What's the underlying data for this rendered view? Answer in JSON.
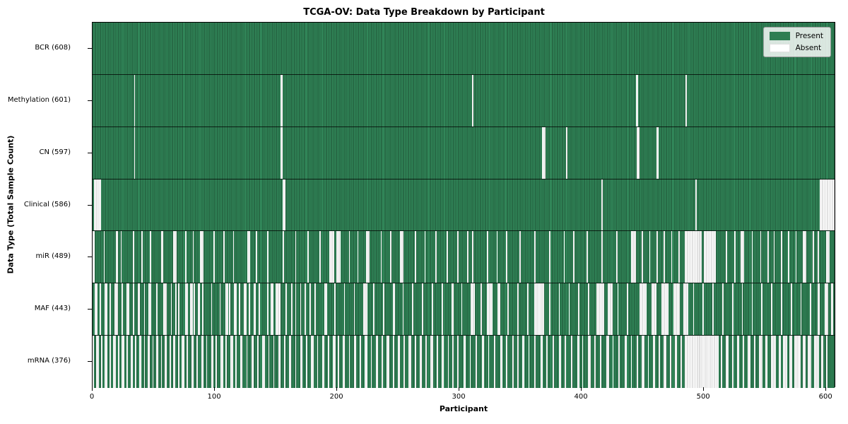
{
  "chart_data": {
    "type": "heatmap",
    "title": "TCGA-OV: Data Type Breakdown by Participant",
    "x_label": "Participant",
    "y_label": "Data Type (Total Sample Count)",
    "x_ticks": [
      0,
      100,
      200,
      300,
      400,
      500,
      600
    ],
    "x_max": 608,
    "n_participants": 608,
    "legend": {
      "present_label": "Present",
      "absent_label": "Absent"
    },
    "colors": {
      "present": "#2e7d52",
      "present_edge": "#1d5134",
      "absent": "#ffffff",
      "absent_edge": "#c4c4c4",
      "row_divider": "#000000"
    },
    "rows": [
      {
        "key": "bcr",
        "label": "BCR (608)",
        "present_count": 608,
        "absent_ranges": []
      },
      {
        "key": "methylation",
        "label": "Methylation (601)",
        "present_count": 601,
        "absent_ranges": [
          [
            34,
            1
          ],
          [
            154,
            2
          ],
          [
            311,
            1
          ],
          [
            445,
            2
          ],
          [
            486,
            1
          ]
        ]
      },
      {
        "key": "cn",
        "label": "CN (597)",
        "present_count": 597,
        "absent_ranges": [
          [
            34,
            1
          ],
          [
            154,
            2
          ],
          [
            368,
            3
          ],
          [
            388,
            1
          ],
          [
            446,
            2
          ],
          [
            462,
            2
          ]
        ]
      },
      {
        "key": "clinical",
        "label": "Clinical (586)",
        "present_count": 586,
        "absent_ranges": [
          [
            1,
            6
          ],
          [
            156,
            2
          ],
          [
            417,
            1
          ],
          [
            494,
            1
          ],
          [
            596,
            12
          ]
        ]
      },
      {
        "key": "mir",
        "label": "miR (489)",
        "present_count": 489,
        "absent_ranges": [
          [
            0,
            2
          ],
          [
            9,
            1
          ],
          [
            19,
            2
          ],
          [
            23,
            1
          ],
          [
            33,
            1
          ],
          [
            40,
            1
          ],
          [
            47,
            1
          ],
          [
            56,
            2
          ],
          [
            66,
            3
          ],
          [
            76,
            1
          ],
          [
            82,
            1
          ],
          [
            88,
            3
          ],
          [
            99,
            1
          ],
          [
            107,
            1
          ],
          [
            115,
            1
          ],
          [
            127,
            2
          ],
          [
            134,
            1
          ],
          [
            143,
            1
          ],
          [
            156,
            1
          ],
          [
            166,
            1
          ],
          [
            176,
            1
          ],
          [
            186,
            1
          ],
          [
            194,
            4
          ],
          [
            200,
            3
          ],
          [
            210,
            1
          ],
          [
            217,
            1
          ],
          [
            224,
            3
          ],
          [
            236,
            1
          ],
          [
            244,
            1
          ],
          [
            252,
            3
          ],
          [
            264,
            1
          ],
          [
            272,
            1
          ],
          [
            281,
            1
          ],
          [
            290,
            1
          ],
          [
            299,
            1
          ],
          [
            307,
            1
          ],
          [
            311,
            1
          ],
          [
            323,
            1
          ],
          [
            331,
            1
          ],
          [
            339,
            1
          ],
          [
            350,
            1
          ],
          [
            362,
            1
          ],
          [
            374,
            1
          ],
          [
            386,
            1
          ],
          [
            394,
            1
          ],
          [
            405,
            1
          ],
          [
            417,
            1
          ],
          [
            429,
            1
          ],
          [
            441,
            4
          ],
          [
            450,
            1
          ],
          [
            456,
            1
          ],
          [
            462,
            1
          ],
          [
            468,
            1
          ],
          [
            474,
            1
          ],
          [
            480,
            1
          ],
          [
            485,
            14
          ],
          [
            501,
            10
          ],
          [
            519,
            1
          ],
          [
            526,
            1
          ],
          [
            531,
            3
          ],
          [
            540,
            1
          ],
          [
            547,
            1
          ],
          [
            553,
            1
          ],
          [
            558,
            1
          ],
          [
            564,
            1
          ],
          [
            570,
            1
          ],
          [
            576,
            1
          ],
          [
            582,
            3
          ],
          [
            590,
            1
          ],
          [
            594,
            1
          ],
          [
            601,
            3
          ]
        ]
      },
      {
        "key": "maf",
        "label": "MAF (443)",
        "present_count": 443,
        "absent_ranges": [
          [
            2,
            2
          ],
          [
            6,
            1
          ],
          [
            10,
            2
          ],
          [
            14,
            1
          ],
          [
            18,
            3
          ],
          [
            24,
            1
          ],
          [
            28,
            2
          ],
          [
            33,
            1
          ],
          [
            37,
            2
          ],
          [
            42,
            1
          ],
          [
            46,
            2
          ],
          [
            52,
            1
          ],
          [
            58,
            3
          ],
          [
            64,
            1
          ],
          [
            68,
            1
          ],
          [
            70,
            1
          ],
          [
            76,
            2
          ],
          [
            80,
            2
          ],
          [
            83,
            1
          ],
          [
            86,
            2
          ],
          [
            90,
            1
          ],
          [
            97,
            1
          ],
          [
            104,
            1
          ],
          [
            109,
            2
          ],
          [
            112,
            1
          ],
          [
            116,
            2
          ],
          [
            120,
            1
          ],
          [
            124,
            2
          ],
          [
            128,
            1
          ],
          [
            132,
            2
          ],
          [
            136,
            1
          ],
          [
            143,
            1
          ],
          [
            146,
            2
          ],
          [
            150,
            4
          ],
          [
            158,
            1
          ],
          [
            163,
            1
          ],
          [
            166,
            1
          ],
          [
            170,
            1
          ],
          [
            174,
            1
          ],
          [
            178,
            1
          ],
          [
            182,
            1
          ],
          [
            190,
            2
          ],
          [
            198,
            1
          ],
          [
            206,
            1
          ],
          [
            214,
            1
          ],
          [
            222,
            3
          ],
          [
            230,
            1
          ],
          [
            238,
            1
          ],
          [
            246,
            2
          ],
          [
            254,
            1
          ],
          [
            262,
            1
          ],
          [
            270,
            1
          ],
          [
            278,
            1
          ],
          [
            286,
            1
          ],
          [
            294,
            2
          ],
          [
            302,
            1
          ],
          [
            310,
            3
          ],
          [
            318,
            1
          ],
          [
            323,
            5
          ],
          [
            332,
            2
          ],
          [
            340,
            1
          ],
          [
            348,
            1
          ],
          [
            356,
            1
          ],
          [
            362,
            8
          ],
          [
            374,
            1
          ],
          [
            382,
            1
          ],
          [
            390,
            1
          ],
          [
            398,
            1
          ],
          [
            406,
            1
          ],
          [
            413,
            6
          ],
          [
            422,
            4
          ],
          [
            430,
            1
          ],
          [
            438,
            1
          ],
          [
            448,
            6
          ],
          [
            458,
            4
          ],
          [
            466,
            6
          ],
          [
            476,
            5
          ],
          [
            484,
            4
          ],
          [
            492,
            1
          ],
          [
            500,
            1
          ],
          [
            508,
            1
          ],
          [
            516,
            1
          ],
          [
            524,
            1
          ],
          [
            532,
            1
          ],
          [
            540,
            1
          ],
          [
            548,
            1
          ],
          [
            556,
            1
          ],
          [
            564,
            1
          ],
          [
            572,
            1
          ],
          [
            580,
            1
          ],
          [
            588,
            1
          ],
          [
            594,
            2
          ],
          [
            600,
            3
          ],
          [
            605,
            2
          ]
        ]
      },
      {
        "key": "mrna",
        "label": "mRNA (376)",
        "present_count": 376,
        "absent_ranges": [
          [
            0,
            1
          ],
          [
            3,
            2
          ],
          [
            7,
            1
          ],
          [
            10,
            2
          ],
          [
            14,
            1
          ],
          [
            17,
            2
          ],
          [
            21,
            1
          ],
          [
            24,
            2
          ],
          [
            28,
            1
          ],
          [
            31,
            2
          ],
          [
            35,
            1
          ],
          [
            38,
            2
          ],
          [
            42,
            1
          ],
          [
            45,
            2
          ],
          [
            49,
            1
          ],
          [
            52,
            2
          ],
          [
            56,
            1
          ],
          [
            59,
            2
          ],
          [
            63,
            1
          ],
          [
            66,
            2
          ],
          [
            70,
            1
          ],
          [
            73,
            2
          ],
          [
            77,
            1
          ],
          [
            81,
            2
          ],
          [
            85,
            1
          ],
          [
            89,
            2
          ],
          [
            93,
            1
          ],
          [
            97,
            2
          ],
          [
            101,
            1
          ],
          [
            105,
            2
          ],
          [
            109,
            1
          ],
          [
            113,
            2
          ],
          [
            117,
            1
          ],
          [
            121,
            2
          ],
          [
            126,
            1
          ],
          [
            130,
            2
          ],
          [
            135,
            1
          ],
          [
            139,
            2
          ],
          [
            144,
            1
          ],
          [
            148,
            1
          ],
          [
            152,
            2
          ],
          [
            157,
            1
          ],
          [
            161,
            2
          ],
          [
            166,
            1
          ],
          [
            170,
            2
          ],
          [
            175,
            1
          ],
          [
            179,
            2
          ],
          [
            184,
            1
          ],
          [
            188,
            2
          ],
          [
            193,
            1
          ],
          [
            197,
            2
          ],
          [
            201,
            1
          ],
          [
            205,
            2
          ],
          [
            210,
            1
          ],
          [
            214,
            2
          ],
          [
            219,
            1
          ],
          [
            223,
            2
          ],
          [
            228,
            1
          ],
          [
            232,
            2
          ],
          [
            237,
            1
          ],
          [
            241,
            2
          ],
          [
            246,
            1
          ],
          [
            250,
            2
          ],
          [
            255,
            1
          ],
          [
            259,
            2
          ],
          [
            264,
            1
          ],
          [
            268,
            2
          ],
          [
            273,
            1
          ],
          [
            277,
            2
          ],
          [
            282,
            1
          ],
          [
            286,
            2
          ],
          [
            291,
            1
          ],
          [
            295,
            1
          ],
          [
            299,
            1
          ],
          [
            304,
            2
          ],
          [
            309,
            1
          ],
          [
            314,
            1
          ],
          [
            319,
            2
          ],
          [
            324,
            1
          ],
          [
            329,
            1
          ],
          [
            334,
            2
          ],
          [
            339,
            1
          ],
          [
            344,
            1
          ],
          [
            348,
            1
          ],
          [
            352,
            2
          ],
          [
            357,
            1
          ],
          [
            362,
            1
          ],
          [
            367,
            2
          ],
          [
            372,
            1
          ],
          [
            377,
            1
          ],
          [
            382,
            2
          ],
          [
            387,
            1
          ],
          [
            392,
            1
          ],
          [
            397,
            2
          ],
          [
            401,
            1
          ],
          [
            406,
            2
          ],
          [
            411,
            1
          ],
          [
            416,
            1
          ],
          [
            421,
            2
          ],
          [
            426,
            1
          ],
          [
            431,
            1
          ],
          [
            436,
            2
          ],
          [
            441,
            1
          ],
          [
            446,
            1
          ],
          [
            450,
            2
          ],
          [
            455,
            1
          ],
          [
            459,
            2
          ],
          [
            464,
            1
          ],
          [
            468,
            2
          ],
          [
            473,
            1
          ],
          [
            477,
            2
          ],
          [
            482,
            1
          ],
          [
            485,
            28
          ],
          [
            515,
            1
          ],
          [
            519,
            2
          ],
          [
            524,
            1
          ],
          [
            528,
            2
          ],
          [
            533,
            1
          ],
          [
            537,
            2
          ],
          [
            542,
            1
          ],
          [
            546,
            3
          ],
          [
            551,
            2
          ],
          [
            556,
            4
          ],
          [
            562,
            2
          ],
          [
            566,
            3
          ],
          [
            571,
            2
          ],
          [
            575,
            5
          ],
          [
            582,
            2
          ],
          [
            586,
            3
          ],
          [
            591,
            4
          ],
          [
            597,
            2
          ],
          [
            601,
            1
          ]
        ]
      }
    ]
  }
}
